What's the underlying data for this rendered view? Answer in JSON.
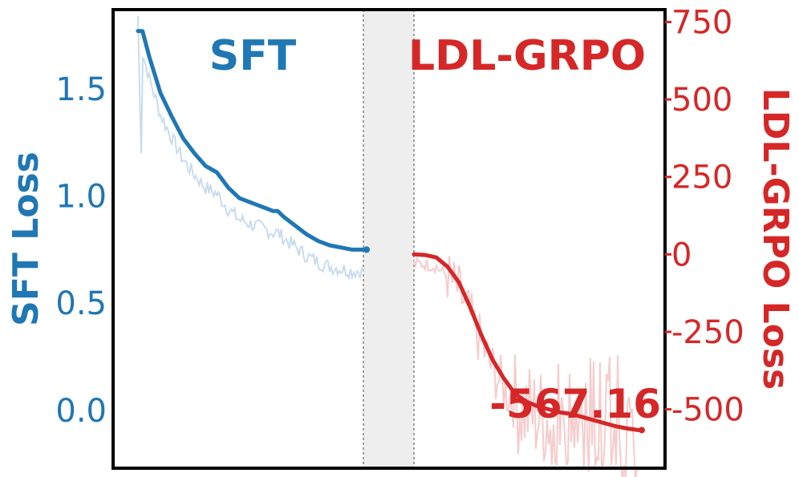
{
  "colors": {
    "sft": "#1f77b4",
    "sft_raw": "#c9dcee",
    "grpo": "#d62728",
    "grpo_raw": "#f6cccc",
    "gap_fill": "#eeeeee",
    "gap_line": "#a0a0a0",
    "frame": "#000000"
  },
  "chart_data": {
    "type": "line",
    "panels": {
      "left_title": "SFT",
      "right_title": "LDL-GRPO"
    },
    "left_axis": {
      "label": "SFT Loss",
      "ylim": [
        -0.27,
        1.87
      ],
      "ticks": [
        {
          "value": 0.0,
          "label": "0.0"
        },
        {
          "value": 0.5,
          "label": "0.5"
        },
        {
          "value": 1.0,
          "label": "1.0"
        },
        {
          "value": 1.5,
          "label": "1.5"
        }
      ]
    },
    "right_axis": {
      "label": "LDL-GRPO Loss",
      "ylim": [
        -690,
        790
      ],
      "ticks": [
        {
          "value": -500,
          "label": "-500"
        },
        {
          "value": -250,
          "label": "-250"
        },
        {
          "value": 0,
          "label": "0"
        },
        {
          "value": 250,
          "label": "250"
        },
        {
          "value": 500,
          "label": "500"
        },
        {
          "value": 750,
          "label": "750"
        }
      ]
    },
    "series": [
      {
        "name": "SFT",
        "progress": [
          0,
          0.02,
          0.05,
          0.1,
          0.15,
          0.2,
          0.25,
          0.3,
          0.35,
          0.4,
          0.45,
          0.5,
          0.55,
          0.6,
          0.62,
          0.65,
          0.7,
          0.75,
          0.8,
          0.85,
          0.9,
          0.95,
          1.0
        ],
        "values": [
          1.77,
          1.77,
          1.65,
          1.48,
          1.37,
          1.27,
          1.2,
          1.14,
          1.11,
          1.04,
          0.99,
          0.97,
          0.95,
          0.93,
          0.93,
          0.9,
          0.86,
          0.82,
          0.79,
          0.77,
          0.76,
          0.75,
          0.75
        ]
      },
      {
        "name": "LDL-GRPO",
        "progress": [
          0,
          0.05,
          0.1,
          0.15,
          0.2,
          0.25,
          0.3,
          0.35,
          0.4,
          0.45,
          0.5,
          0.55,
          0.6,
          0.65,
          0.7,
          0.75,
          0.8,
          0.85,
          0.9,
          0.95,
          1.0
        ],
        "values": [
          0,
          -2,
          -10,
          -40,
          -90,
          -170,
          -260,
          -340,
          -400,
          -450,
          -475,
          -490,
          -500,
          -510,
          -515,
          -525,
          -535,
          -545,
          -555,
          -562,
          -567.16
        ]
      }
    ],
    "annotations": {
      "final_value": "-567.16"
    }
  }
}
